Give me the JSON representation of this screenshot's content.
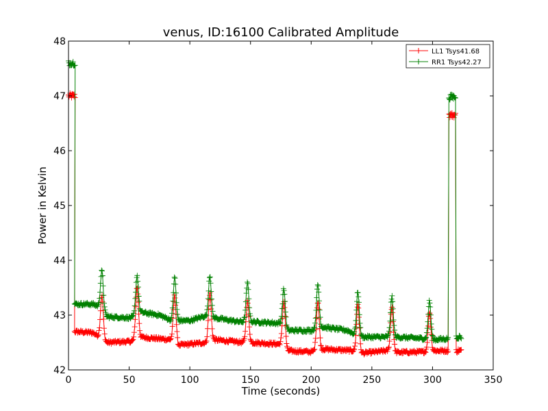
{
  "chart_data": {
    "type": "line",
    "title": "venus, ID:16100 Calibrated Amplitude",
    "xlabel": "Time (seconds)",
    "ylabel": "Power in Kelvin",
    "xlim": [
      0,
      350
    ],
    "ylim": [
      42,
      48
    ],
    "xticks": [
      0,
      50,
      100,
      150,
      200,
      250,
      300,
      350
    ],
    "yticks": [
      42,
      43,
      44,
      45,
      46,
      47,
      48
    ],
    "grid": false,
    "legend_position": "top-right",
    "marker": "+",
    "series": [
      {
        "name": "LL1 Tsys41.68",
        "color": "#ff0000",
        "baseline": [
          [
            5,
            42.7
          ],
          [
            20,
            42.68
          ],
          [
            26,
            42.6
          ],
          [
            32,
            42.5
          ],
          [
            52,
            42.52
          ],
          [
            58,
            42.6
          ],
          [
            85,
            42.55
          ],
          [
            90,
            42.45
          ],
          [
            114,
            42.5
          ],
          [
            120,
            42.55
          ],
          [
            145,
            42.5
          ],
          [
            150,
            42.5
          ],
          [
            175,
            42.47
          ],
          [
            180,
            42.35
          ],
          [
            200,
            42.33
          ],
          [
            210,
            42.38
          ],
          [
            235,
            42.35
          ],
          [
            240,
            42.3
          ],
          [
            262,
            42.35
          ],
          [
            270,
            42.32
          ],
          [
            295,
            42.33
          ],
          [
            300,
            42.35
          ],
          [
            313,
            42.35
          ]
        ],
        "peaks": [
          [
            27.5,
            43.35
          ],
          [
            56.5,
            43.5
          ],
          [
            87.5,
            43.35
          ],
          [
            116.5,
            43.4
          ],
          [
            147.5,
            43.25
          ],
          [
            177.5,
            43.25
          ],
          [
            205.5,
            43.25
          ],
          [
            238.5,
            43.2
          ],
          [
            266.5,
            43.15
          ],
          [
            297.5,
            43.05
          ]
        ],
        "start": {
          "x_start": 0,
          "x_end": 5.5,
          "value": 47.0
        },
        "end": {
          "x_start": 313.5,
          "x_end": 319,
          "value": 46.65,
          "tail_start": 319.5,
          "tail_end": 324,
          "tail_value": 42.35
        }
      },
      {
        "name": "RR1 Tsys42.27",
        "color": "#008000",
        "baseline": [
          [
            5,
            43.2
          ],
          [
            20,
            43.2
          ],
          [
            26,
            43.15
          ],
          [
            32,
            42.97
          ],
          [
            52,
            42.95
          ],
          [
            60,
            43.05
          ],
          [
            75,
            43.0
          ],
          [
            85,
            42.9
          ],
          [
            100,
            42.9
          ],
          [
            112,
            42.98
          ],
          [
            120,
            42.95
          ],
          [
            140,
            42.88
          ],
          [
            150,
            42.88
          ],
          [
            175,
            42.85
          ],
          [
            180,
            42.72
          ],
          [
            200,
            42.72
          ],
          [
            210,
            42.78
          ],
          [
            230,
            42.72
          ],
          [
            240,
            42.6
          ],
          [
            262,
            42.6
          ],
          [
            270,
            42.6
          ],
          [
            295,
            42.57
          ],
          [
            300,
            42.55
          ],
          [
            313,
            42.57
          ]
        ],
        "peaks": [
          [
            27.5,
            43.8
          ],
          [
            56.5,
            43.72
          ],
          [
            87.5,
            43.68
          ],
          [
            116.5,
            43.72
          ],
          [
            147.5,
            43.58
          ],
          [
            177.5,
            43.47
          ],
          [
            205.5,
            43.55
          ],
          [
            238.5,
            43.42
          ],
          [
            266.5,
            43.33
          ],
          [
            297.5,
            43.25
          ]
        ],
        "start": {
          "x_start": 0,
          "x_end": 5.5,
          "value": 47.6
        },
        "end": {
          "x_start": 313.5,
          "x_end": 319,
          "value": 46.98,
          "tail_start": 319.5,
          "tail_end": 324,
          "tail_value": 42.6
        }
      }
    ]
  }
}
